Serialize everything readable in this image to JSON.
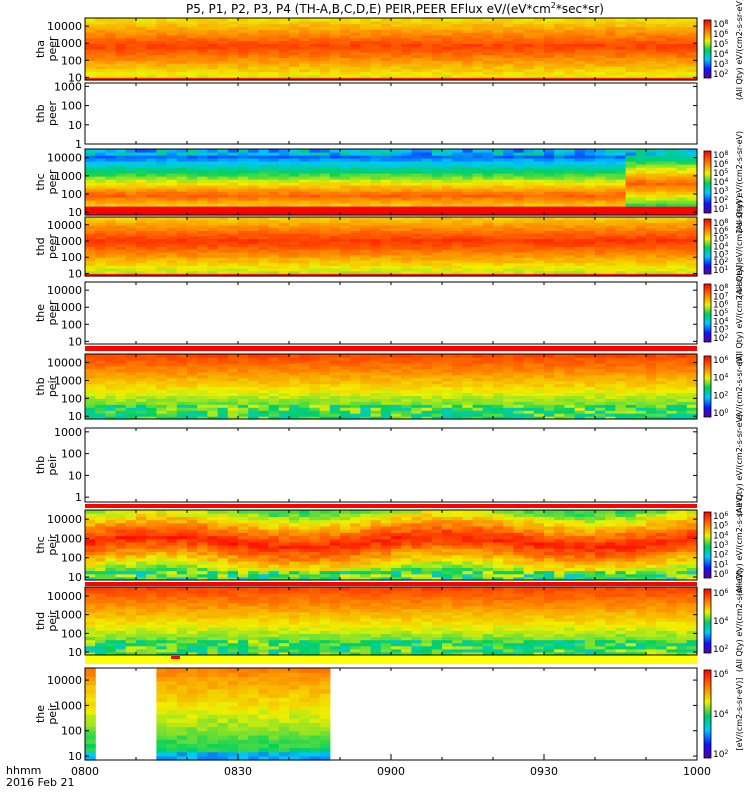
{
  "chart_data": {
    "type": "heatmap",
    "title": "P5, P1, P2, P3, P4 (TH-A,B,C,D,E) PEIR,PEER EFlux eV/(eV*cm^2*sec*sr)",
    "title_main": "P5, P1, P2, P3, P4 (TH-A,B,C,D,E) PEIR,PEER EFlux eV/(eV*cm",
    "title_sup": "2",
    "title_tail": "*sec*sr)",
    "x_axis": {
      "ticks": [
        "0800",
        "0830",
        "0900",
        "0930",
        "1000"
      ],
      "tick_minutes": [
        0,
        30,
        60,
        90,
        120
      ],
      "range_minutes": [
        0,
        120
      ],
      "label_line1": "hhmm",
      "label_line2": "2016 Feb 21"
    },
    "panels": [
      {
        "id": "tha_peer",
        "probe": "tha",
        "species": "peer",
        "ylabel": [
          "tha",
          "peer"
        ],
        "yticks": [
          "10000",
          "1000",
          "100",
          "10"
        ],
        "ytick_vals": [
          10000,
          1000,
          100,
          10
        ],
        "ylim": [
          7,
          30000
        ],
        "cbar_ticks": [
          "10^8",
          "10^6",
          "10^5",
          "10^4",
          "10^3",
          "10^2"
        ],
        "cbar_label": "(All Qty) eV/(cm2-s-sr-eV)",
        "pattern": "electron_hot",
        "coverage": [
          [
            0,
            120
          ]
        ],
        "status_bar": null
      },
      {
        "id": "thb_peer",
        "probe": "thb",
        "species": "peer",
        "ylabel": [
          "thb",
          "peer"
        ],
        "yticks": [
          "1000",
          "100",
          "10",
          "1"
        ],
        "ytick_vals": [
          1000,
          100,
          10,
          1
        ],
        "ylim": [
          1,
          1500
        ],
        "cbar_ticks": [],
        "cbar_label": "",
        "pattern": "empty",
        "coverage": [],
        "status_bar": null
      },
      {
        "id": "thc_peer",
        "probe": "thc",
        "species": "peer",
        "ylabel": [
          "thc",
          "peer"
        ],
        "yticks": [
          "10000",
          "1000",
          "100",
          "10"
        ],
        "ytick_vals": [
          10000,
          1000,
          100,
          10
        ],
        "ylim": [
          7,
          30000
        ],
        "cbar_ticks": [
          "10^8",
          "10^6",
          "10^5",
          "10^4",
          "10^3",
          "10^2",
          "10^1"
        ],
        "cbar_label": "(All Qty) eV/(cm2-s-sr-eV)",
        "pattern": "electron_cool",
        "coverage": [
          [
            0,
            120
          ]
        ],
        "status_bar": null
      },
      {
        "id": "thd_peer",
        "probe": "thd",
        "species": "peer",
        "ylabel": [
          "thd",
          "peer"
        ],
        "yticks": [
          "10000",
          "1000",
          "100",
          "10"
        ],
        "ytick_vals": [
          10000,
          1000,
          100,
          10
        ],
        "ylim": [
          7,
          30000
        ],
        "cbar_ticks": [
          "10^8",
          "10^6",
          "10^5",
          "10^4",
          "10^3",
          "10^2",
          "10^1"
        ],
        "cbar_label": "(All Qty) eV/(cm2-s-sr-eV)",
        "pattern": "electron_hot2",
        "coverage": [
          [
            0,
            120
          ]
        ],
        "status_bar": null
      },
      {
        "id": "the_peer",
        "probe": "the",
        "species": "peer",
        "ylabel": [
          "the",
          "peer"
        ],
        "yticks": [
          "10000",
          "1000",
          "100",
          "10"
        ],
        "ytick_vals": [
          10000,
          1000,
          100,
          10
        ],
        "ylim": [
          7,
          30000
        ],
        "cbar_ticks": [
          "10^8",
          "10^7",
          "10^6",
          "10^5",
          "10^4",
          "10^3",
          "10^2"
        ],
        "cbar_label": "(All Qty) eV/(cm2-s-sr-eV)",
        "pattern": "empty",
        "coverage": [],
        "status_bar": "red"
      },
      {
        "id": "thb_peir",
        "probe": "thb",
        "species": "peir",
        "ylabel": [
          "thb",
          "peir"
        ],
        "yticks": [
          "10000",
          "1000",
          "100",
          "10"
        ],
        "ytick_vals": [
          10000,
          1000,
          100,
          10
        ],
        "ylim": [
          7,
          30000
        ],
        "cbar_ticks": [
          "10^6",
          "10^4",
          "10^2",
          "10^0"
        ],
        "cbar_label": "eV/(cm2-s-sr-eV)",
        "pattern": "ion",
        "coverage": [
          [
            0,
            120
          ]
        ],
        "status_bar": null
      },
      {
        "id": "thb_peir2",
        "probe": "thb",
        "species": "peir",
        "ylabel": [
          "thb",
          "peir"
        ],
        "yticks": [
          "1000",
          "100",
          "10",
          "1"
        ],
        "ytick_vals": [
          1000,
          100,
          10,
          1
        ],
        "ylim": [
          0.6,
          1500
        ],
        "cbar_ticks": [],
        "cbar_label": "(All Qty) eV/(cm2-s-sr-eV)",
        "pattern": "empty",
        "coverage": [],
        "status_bar": "red"
      },
      {
        "id": "thc_peir",
        "probe": "thc",
        "species": "peir",
        "ylabel": [
          "thc",
          "peir"
        ],
        "yticks": [
          "10000",
          "1000",
          "100",
          "10"
        ],
        "ytick_vals": [
          10000,
          1000,
          100,
          10
        ],
        "ylim": [
          7,
          30000
        ],
        "cbar_ticks": [
          "10^6",
          "10^5",
          "10^4",
          "10^3",
          "10^2",
          "10^1",
          "10^0"
        ],
        "cbar_label": "(All Qty) eV/(cm2-s-sr-eV)",
        "pattern": "ion_hot",
        "coverage": [
          [
            0,
            120
          ]
        ],
        "status_bar": "red"
      },
      {
        "id": "thd_peir",
        "probe": "thd",
        "species": "peir",
        "ylabel": [
          "thd",
          "peir"
        ],
        "yticks": [
          "10000",
          "1000",
          "100",
          "10"
        ],
        "ytick_vals": [
          10000,
          1000,
          100,
          10
        ],
        "ylim": [
          7,
          30000
        ],
        "cbar_ticks": [
          "10^6",
          "10^4",
          "10^2"
        ],
        "cbar_label": "(All Qty) eV/(cm2-s-sr-eV)",
        "pattern": "ion",
        "coverage": [
          [
            0,
            120
          ]
        ],
        "status_bar": "yellow"
      },
      {
        "id": "the_peir",
        "probe": "the",
        "species": "peir",
        "ylabel": [
          "the",
          "peir"
        ],
        "yticks": [
          "10000",
          "1000",
          "100",
          "10"
        ],
        "ytick_vals": [
          10000,
          1000,
          100,
          10
        ],
        "ylim": [
          7,
          30000
        ],
        "cbar_ticks": [
          "10^6",
          "10^4",
          "10^2"
        ],
        "cbar_label": "[eV/(cm2-s-sr-eV)]",
        "pattern": "ion_partial",
        "coverage": [
          [
            0,
            2
          ],
          [
            14,
            47
          ]
        ],
        "status_bar": null
      }
    ]
  }
}
